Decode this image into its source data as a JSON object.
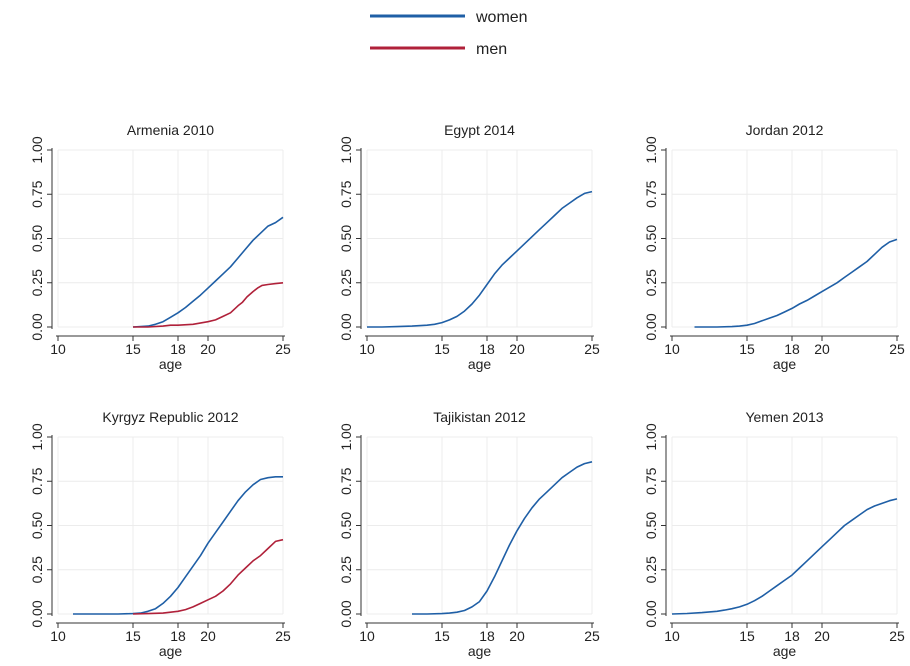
{
  "legend": {
    "placement": "top-center",
    "items": [
      {
        "label": "women",
        "color": "#1f5fa6"
      },
      {
        "label": "men",
        "color": "#b0213a"
      }
    ]
  },
  "chart_data": [
    {
      "type": "line",
      "title": "Armenia 2010",
      "xlabel": "age",
      "ylabel": "",
      "xlim": [
        10,
        25
      ],
      "ylim": [
        0,
        1
      ],
      "xticks": [
        10,
        15,
        18,
        20,
        25
      ],
      "yticks": [
        "0.00",
        "0.25",
        "0.50",
        "0.75",
        "1.00"
      ],
      "grid": true,
      "series": [
        {
          "name": "women",
          "color": "#1f5fa6",
          "x": [
            15,
            16,
            16.5,
            17,
            17.5,
            18,
            18.5,
            19,
            19.5,
            20,
            20.5,
            21,
            21.5,
            22,
            22.5,
            23,
            23.5,
            24,
            24.5,
            25
          ],
          "y": [
            0,
            0.005,
            0.015,
            0.03,
            0.055,
            0.08,
            0.11,
            0.145,
            0.18,
            0.22,
            0.26,
            0.3,
            0.34,
            0.39,
            0.44,
            0.49,
            0.53,
            0.57,
            0.59,
            0.62
          ]
        },
        {
          "name": "men",
          "color": "#b0213a",
          "x": [
            15,
            16,
            17,
            17.5,
            18,
            19,
            20,
            20.5,
            21,
            21.5,
            22,
            22.3,
            22.6,
            23,
            23.3,
            23.6,
            24,
            24.5,
            25
          ],
          "y": [
            0,
            0,
            0.005,
            0.01,
            0.01,
            0.015,
            0.03,
            0.04,
            0.06,
            0.08,
            0.12,
            0.14,
            0.17,
            0.2,
            0.22,
            0.235,
            0.24,
            0.245,
            0.25
          ]
        }
      ]
    },
    {
      "type": "line",
      "title": "Egypt 2014",
      "xlabel": "age",
      "ylabel": "",
      "xlim": [
        10,
        25
      ],
      "ylim": [
        0,
        1
      ],
      "xticks": [
        10,
        15,
        18,
        20,
        25
      ],
      "yticks": [
        "0.00",
        "0.25",
        "0.50",
        "0.75",
        "1.00"
      ],
      "grid": true,
      "series": [
        {
          "name": "women",
          "color": "#1f5fa6",
          "x": [
            10,
            11,
            12,
            13,
            14,
            14.5,
            15,
            15.5,
            16,
            16.5,
            17,
            17.5,
            18,
            18.5,
            19,
            19.5,
            20,
            20.5,
            21,
            21.5,
            22,
            22.5,
            23,
            23.5,
            24,
            24.5,
            25
          ],
          "y": [
            0,
            0,
            0.002,
            0.005,
            0.01,
            0.015,
            0.025,
            0.04,
            0.06,
            0.09,
            0.13,
            0.18,
            0.24,
            0.3,
            0.35,
            0.39,
            0.43,
            0.47,
            0.51,
            0.55,
            0.59,
            0.63,
            0.67,
            0.7,
            0.73,
            0.755,
            0.765
          ]
        }
      ]
    },
    {
      "type": "line",
      "title": "Jordan 2012",
      "xlabel": "age",
      "ylabel": "",
      "xlim": [
        10,
        25
      ],
      "ylim": [
        0,
        1
      ],
      "xticks": [
        10,
        15,
        18,
        20,
        25
      ],
      "yticks": [
        "0.00",
        "0.25",
        "0.50",
        "0.75",
        "1.00"
      ],
      "grid": true,
      "series": [
        {
          "name": "women",
          "color": "#1f5fa6",
          "x": [
            11.5,
            12,
            13,
            14,
            14.5,
            15,
            15.5,
            16,
            16.5,
            17,
            17.5,
            18,
            18.5,
            19,
            19.5,
            20,
            20.5,
            21,
            21.5,
            22,
            22.5,
            23,
            23.5,
            24,
            24.5,
            25
          ],
          "y": [
            0,
            0,
            0,
            0.002,
            0.005,
            0.01,
            0.02,
            0.035,
            0.05,
            0.065,
            0.085,
            0.105,
            0.13,
            0.15,
            0.175,
            0.2,
            0.225,
            0.25,
            0.28,
            0.31,
            0.34,
            0.37,
            0.41,
            0.45,
            0.48,
            0.495
          ]
        }
      ]
    },
    {
      "type": "line",
      "title": "Kyrgyz Republic 2012",
      "xlabel": "age",
      "ylabel": "",
      "xlim": [
        10,
        25
      ],
      "ylim": [
        0,
        1
      ],
      "xticks": [
        10,
        15,
        18,
        20,
        25
      ],
      "yticks": [
        "0.00",
        "0.25",
        "0.50",
        "0.75",
        "1.00"
      ],
      "grid": true,
      "series": [
        {
          "name": "women",
          "color": "#1f5fa6",
          "x": [
            11,
            12,
            13,
            14,
            15,
            15.5,
            16,
            16.5,
            17,
            17.5,
            18,
            18.5,
            19,
            19.5,
            20,
            20.5,
            21,
            21.5,
            22,
            22.5,
            23,
            23.5,
            24,
            24.5,
            25
          ],
          "y": [
            0,
            0,
            0,
            0,
            0.002,
            0.005,
            0.015,
            0.03,
            0.06,
            0.1,
            0.15,
            0.21,
            0.27,
            0.33,
            0.4,
            0.46,
            0.52,
            0.58,
            0.64,
            0.69,
            0.73,
            0.76,
            0.77,
            0.775,
            0.775
          ]
        },
        {
          "name": "men",
          "color": "#b0213a",
          "x": [
            15,
            16,
            17,
            17.5,
            18,
            18.5,
            19,
            19.5,
            20,
            20.5,
            21,
            21.5,
            22,
            22.5,
            23,
            23.5,
            24,
            24.5,
            25
          ],
          "y": [
            0,
            0.002,
            0.005,
            0.01,
            0.015,
            0.025,
            0.04,
            0.06,
            0.08,
            0.1,
            0.13,
            0.17,
            0.22,
            0.26,
            0.3,
            0.33,
            0.37,
            0.41,
            0.42
          ]
        }
      ]
    },
    {
      "type": "line",
      "title": "Tajikistan 2012",
      "xlabel": "age",
      "ylabel": "",
      "xlim": [
        10,
        25
      ],
      "ylim": [
        0,
        1
      ],
      "xticks": [
        10,
        15,
        18,
        20,
        25
      ],
      "yticks": [
        "0.00",
        "0.25",
        "0.50",
        "0.75",
        "1.00"
      ],
      "grid": true,
      "series": [
        {
          "name": "women",
          "color": "#1f5fa6",
          "x": [
            13,
            14,
            15,
            15.5,
            16,
            16.5,
            17,
            17.5,
            18,
            18.5,
            19,
            19.5,
            20,
            20.5,
            21,
            21.5,
            22,
            22.5,
            23,
            23.5,
            24,
            24.5,
            25
          ],
          "y": [
            0,
            0,
            0.002,
            0.005,
            0.01,
            0.02,
            0.04,
            0.07,
            0.13,
            0.21,
            0.3,
            0.39,
            0.47,
            0.54,
            0.6,
            0.65,
            0.69,
            0.73,
            0.77,
            0.8,
            0.83,
            0.85,
            0.86
          ]
        }
      ]
    },
    {
      "type": "line",
      "title": "Yemen 2013",
      "xlabel": "age",
      "ylabel": "",
      "xlim": [
        10,
        25
      ],
      "ylim": [
        0,
        1
      ],
      "xticks": [
        10,
        15,
        18,
        20,
        25
      ],
      "yticks": [
        "0.00",
        "0.25",
        "0.50",
        "0.75",
        "1.00"
      ],
      "grid": true,
      "series": [
        {
          "name": "women",
          "color": "#1f5fa6",
          "x": [
            10,
            11,
            12,
            13,
            13.5,
            14,
            14.5,
            15,
            15.5,
            16,
            16.5,
            17,
            17.5,
            18,
            18.5,
            19,
            19.5,
            20,
            20.5,
            21,
            21.5,
            22,
            22.5,
            23,
            23.5,
            24,
            24.5,
            25
          ],
          "y": [
            0,
            0.003,
            0.008,
            0.015,
            0.022,
            0.03,
            0.04,
            0.055,
            0.075,
            0.1,
            0.13,
            0.16,
            0.19,
            0.22,
            0.26,
            0.3,
            0.34,
            0.38,
            0.42,
            0.46,
            0.5,
            0.53,
            0.56,
            0.59,
            0.61,
            0.625,
            0.64,
            0.65
          ]
        }
      ]
    }
  ]
}
